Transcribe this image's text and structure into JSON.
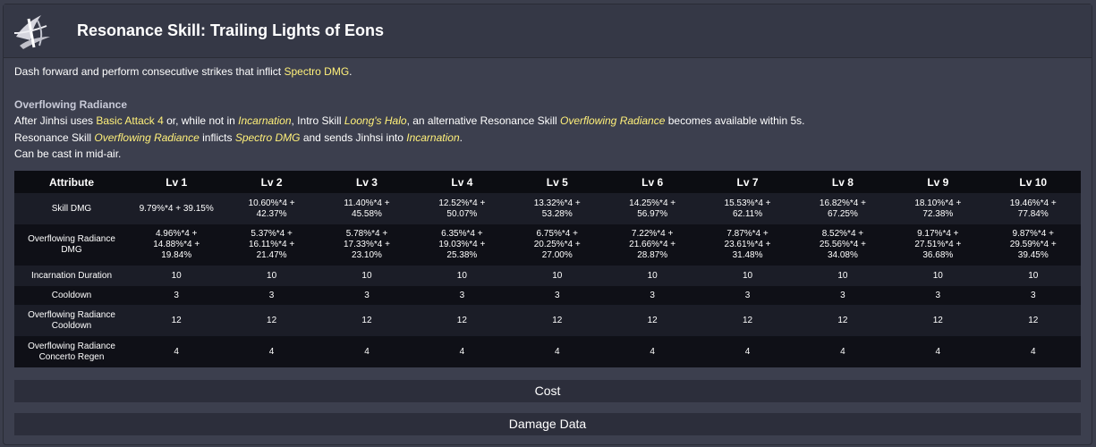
{
  "header": {
    "title": "Resonance Skill: Trailing Lights of Eons",
    "logo_icon": "resonator-emblem-icon"
  },
  "description": {
    "line1": {
      "text": "Dash forward and perform consecutive strikes that inflict ",
      "kw": "Spectro DMG",
      "end": "."
    },
    "subheading": "Overflowing Radiance",
    "line2": {
      "a": "After Jinhsi uses ",
      "kw1": "Basic Attack 4",
      "b": " or, while not in ",
      "kw2": "Incarnation",
      "c": ", Intro Skill ",
      "kw3": "Loong's Halo",
      "d": ", an alternative Resonance Skill ",
      "kw4": "Overflowing Radiance",
      "e": " becomes available within 5s."
    },
    "line3": {
      "a": "Resonance Skill ",
      "kw1": "Overflowing Radiance",
      "b": " inflicts ",
      "kw2": "Spectro DMG",
      "c": " and sends Jinhsi into ",
      "kw3": "Incarnation",
      "d": "."
    },
    "line4": "Can be cast in mid-air."
  },
  "table": {
    "headers": [
      "Attribute",
      "Lv 1",
      "Lv 2",
      "Lv 3",
      "Lv 4",
      "Lv 5",
      "Lv 6",
      "Lv 7",
      "Lv 8",
      "Lv 9",
      "Lv 10"
    ],
    "rows": [
      {
        "label": "Skill DMG",
        "values": [
          "9.79%*4 + 39.15%",
          "10.60%*4 +\n42.37%",
          "11.40%*4 +\n45.58%",
          "12.52%*4 +\n50.07%",
          "13.32%*4 +\n53.28%",
          "14.25%*4 +\n56.97%",
          "15.53%*4 +\n62.11%",
          "16.82%*4 +\n67.25%",
          "18.10%*4 +\n72.38%",
          "19.46%*4 +\n77.84%"
        ]
      },
      {
        "label": "Overflowing Radiance\nDMG",
        "values": [
          "4.96%*4 +\n14.88%*4 +\n19.84%",
          "5.37%*4 +\n16.11%*4 +\n21.47%",
          "5.78%*4 +\n17.33%*4 +\n23.10%",
          "6.35%*4 +\n19.03%*4 +\n25.38%",
          "6.75%*4 +\n20.25%*4 +\n27.00%",
          "7.22%*4 +\n21.66%*4 +\n28.87%",
          "7.87%*4 +\n23.61%*4 +\n31.48%",
          "8.52%*4 +\n25.56%*4 +\n34.08%",
          "9.17%*4 +\n27.51%*4 +\n36.68%",
          "9.87%*4 +\n29.59%*4 +\n39.45%"
        ]
      },
      {
        "label": "Incarnation Duration",
        "values": [
          "10",
          "10",
          "10",
          "10",
          "10",
          "10",
          "10",
          "10",
          "10",
          "10"
        ]
      },
      {
        "label": "Cooldown",
        "values": [
          "3",
          "3",
          "3",
          "3",
          "3",
          "3",
          "3",
          "3",
          "3",
          "3"
        ]
      },
      {
        "label": "Overflowing Radiance\nCooldown",
        "values": [
          "12",
          "12",
          "12",
          "12",
          "12",
          "12",
          "12",
          "12",
          "12",
          "12"
        ]
      },
      {
        "label": "Overflowing Radiance\nConcerto Regen",
        "values": [
          "4",
          "4",
          "4",
          "4",
          "4",
          "4",
          "4",
          "4",
          "4",
          "4"
        ]
      }
    ]
  },
  "sections": {
    "cost_label": "Cost",
    "damage_data_label": "Damage Data"
  }
}
